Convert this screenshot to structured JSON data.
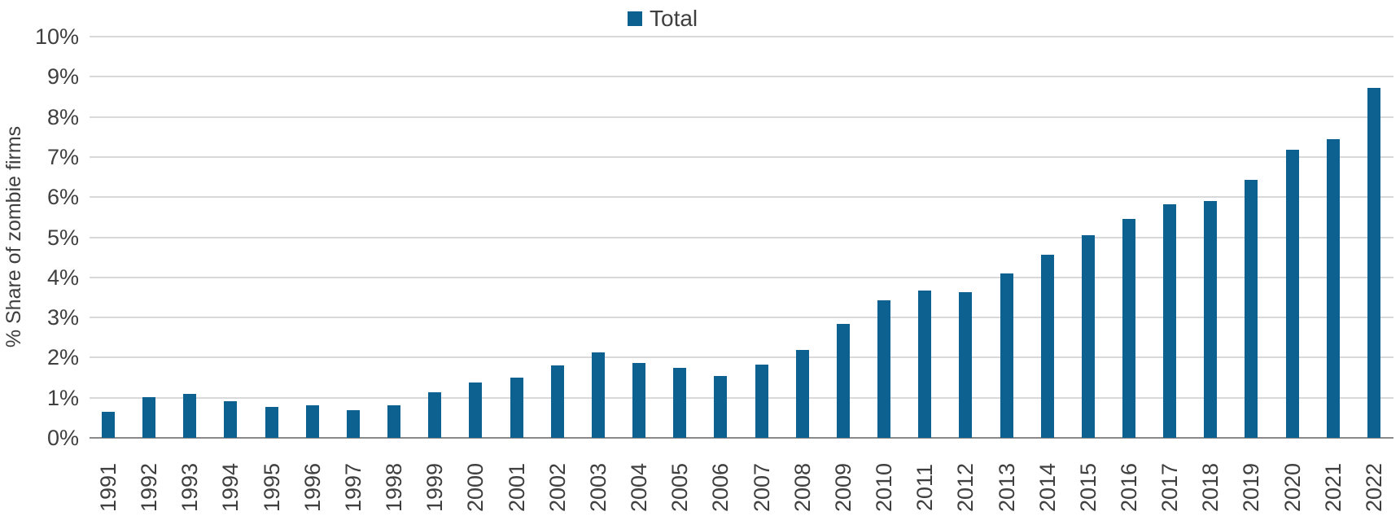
{
  "chart_data": {
    "type": "bar",
    "title": "",
    "xlabel": "",
    "ylabel": "% Share of zombie firms",
    "legend_position": "top-center",
    "grid": "horizontal",
    "ylim": [
      0,
      10
    ],
    "yticks": [
      {
        "value": 0,
        "label": "0%"
      },
      {
        "value": 1,
        "label": "1%"
      },
      {
        "value": 2,
        "label": "2%"
      },
      {
        "value": 3,
        "label": "3%"
      },
      {
        "value": 4,
        "label": "4%"
      },
      {
        "value": 5,
        "label": "5%"
      },
      {
        "value": 6,
        "label": "6%"
      },
      {
        "value": 7,
        "label": "7%"
      },
      {
        "value": 8,
        "label": "8%"
      },
      {
        "value": 9,
        "label": "9%"
      },
      {
        "value": 10,
        "label": "10%"
      }
    ],
    "categories": [
      "1991",
      "1992",
      "1993",
      "1994",
      "1995",
      "1996",
      "1997",
      "1998",
      "1999",
      "2000",
      "2001",
      "2002",
      "2003",
      "2004",
      "2005",
      "2006",
      "2007",
      "2008",
      "2009",
      "2010",
      "2011",
      "2012",
      "2013",
      "2014",
      "2015",
      "2016",
      "2017",
      "2018",
      "2019",
      "2020",
      "2021",
      "2022"
    ],
    "series": [
      {
        "name": "Total",
        "color": "#0d6191",
        "values": [
          0.65,
          1.01,
          1.09,
          0.92,
          0.78,
          0.81,
          0.69,
          0.81,
          1.13,
          1.38,
          1.5,
          1.81,
          2.14,
          1.86,
          1.74,
          1.54,
          1.82,
          2.2,
          2.84,
          3.43,
          3.68,
          3.64,
          4.09,
          4.57,
          5.05,
          5.46,
          5.82,
          5.9,
          6.43,
          7.19,
          7.45,
          8.72
        ]
      }
    ]
  },
  "style": {
    "bar_color": "#0d6191",
    "grid_color": "#d9d9d9",
    "axis_color": "#8a8a8a",
    "text_color": "#3f3f3f",
    "background": "#ffffff"
  }
}
